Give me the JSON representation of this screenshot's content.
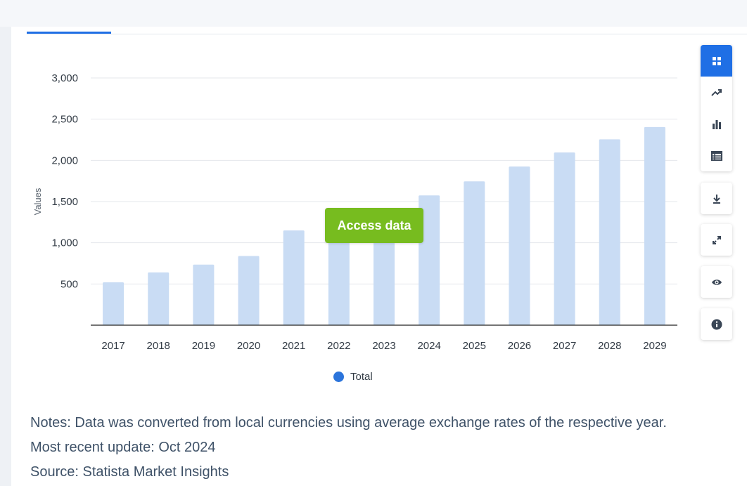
{
  "chart_data": {
    "type": "bar",
    "categories": [
      "2017",
      "2018",
      "2019",
      "2020",
      "2021",
      "2022",
      "2023",
      "2024",
      "2025",
      "2026",
      "2027",
      "2028",
      "2029"
    ],
    "series": [
      {
        "name": "Total",
        "values": [
          520,
          640,
          735,
          840,
          1150,
          1280,
          1420,
          1575,
          1745,
          1925,
          2095,
          2255,
          2405
        ]
      }
    ],
    "ylabel": "Values",
    "xlabel": "",
    "ylim": [
      0,
      3000
    ],
    "yticks": [
      500,
      1000,
      1500,
      2000,
      2500,
      3000
    ],
    "ytick_labels": [
      "500",
      "1,000",
      "1,500",
      "2,000",
      "2,500",
      "3,000"
    ],
    "grid": true,
    "legend_position": "bottom-center",
    "bar_color": "#c9dcf4",
    "legend_color": "#2b74db"
  },
  "overlay": {
    "access_label": "Access data",
    "color": "#77bc1f"
  },
  "legend": {
    "total_label": "Total"
  },
  "notes": {
    "line1": "Notes: Data was converted from local currencies using average exchange rates of the respective year.",
    "line2": "Most recent update: Oct 2024",
    "line3": "Source: Statista Market Insights"
  },
  "toolbar": {
    "accent": "#1f6fe5",
    "icons": [
      "grid-icon",
      "trend-line-icon",
      "bar-chart-icon",
      "table-icon",
      "download-icon",
      "expand-icon",
      "eye-icon",
      "info-icon"
    ]
  }
}
